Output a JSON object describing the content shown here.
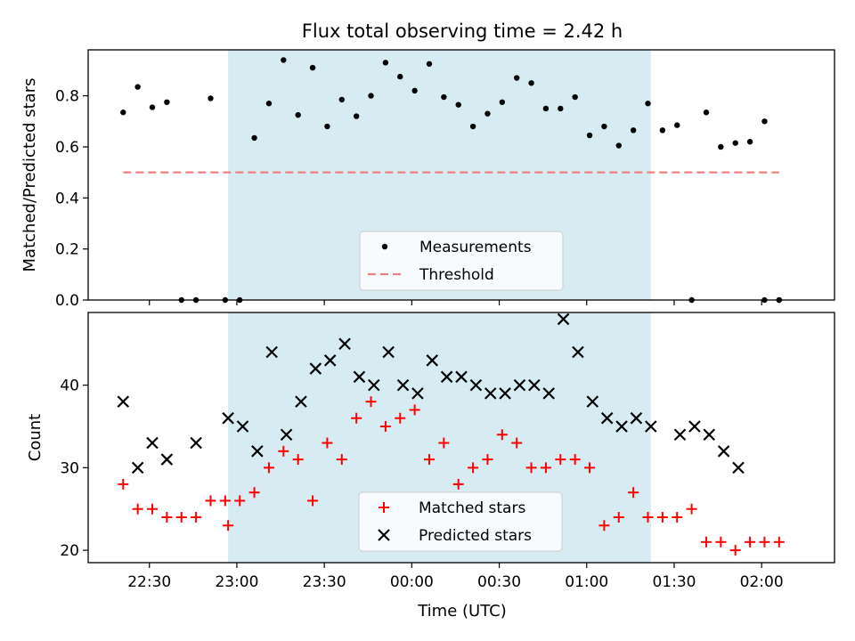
{
  "figure": {
    "title": "Flux total observing time = 2.42 h",
    "xlabel": "Time (UTC)"
  },
  "colors": {
    "band": "#add8e6",
    "threshold": "#f08080",
    "matched": "#ff0000",
    "predicted": "#000000",
    "measurements": "#000000"
  },
  "chart_data": [
    {
      "type": "scatter",
      "ylabel": "Matched/Predicted stars",
      "ylim": [
        0,
        0.98
      ],
      "yticks": [
        0.0,
        0.2,
        0.4,
        0.6,
        0.8
      ],
      "ytick_labels": [
        "0.0",
        "0.2",
        "0.4",
        "0.6",
        "0.8"
      ],
      "xlim": [
        "22:09",
        "02:25"
      ],
      "band": [
        "22:57",
        "01:22"
      ],
      "threshold": {
        "value": 0.5,
        "from": "22:21",
        "to": "02:06"
      },
      "legend": {
        "position": "bottom-center",
        "entries": [
          "Measurements",
          "Threshold"
        ]
      },
      "series": [
        {
          "name": "Measurements",
          "x": [
            "22:21",
            "22:26",
            "22:31",
            "22:36",
            "22:41",
            "22:46",
            "22:51",
            "22:56",
            "23:01",
            "23:06",
            "23:11",
            "23:16",
            "23:21",
            "23:26",
            "23:31",
            "23:36",
            "23:41",
            "23:46",
            "23:51",
            "23:56",
            "00:01",
            "00:06",
            "00:11",
            "00:16",
            "00:21",
            "00:26",
            "00:31",
            "00:36",
            "00:41",
            "00:46",
            "00:51",
            "00:56",
            "01:01",
            "01:06",
            "01:11",
            "01:16",
            "01:21",
            "01:26",
            "01:31",
            "01:36",
            "01:41",
            "01:46",
            "01:51",
            "01:56",
            "02:01",
            "02:06"
          ],
          "y": [
            0.735,
            0.835,
            0.755,
            0.775,
            0.0,
            0.0,
            0.79,
            0.0,
            0.0,
            0.635,
            0.77,
            0.94,
            0.725,
            0.91,
            0.68,
            0.785,
            0.72,
            0.8,
            0.93,
            0.875,
            0.82,
            0.925,
            0.795,
            0.765,
            0.68,
            0.73,
            0.775,
            0.87,
            0.85,
            0.75,
            0.75,
            0.795,
            0.645,
            0.68,
            0.605,
            0.665,
            0.77,
            0.665,
            0.685,
            0.0,
            0.735,
            0.6,
            0.615,
            0.62,
            0.7,
            0.0
          ]
        }
      ],
      "extra_zero_points": [
        "02:01",
        "02:06"
      ]
    },
    {
      "type": "scatter",
      "ylabel": "Count",
      "ylim": [
        18.5,
        48.8
      ],
      "yticks": [
        20,
        30,
        40
      ],
      "ytick_labels": [
        "20",
        "30",
        "40"
      ],
      "xlim": [
        "22:09",
        "02:25"
      ],
      "band": [
        "22:57",
        "01:22"
      ],
      "xticks": [
        "22:30",
        "23:00",
        "23:30",
        "00:00",
        "00:30",
        "01:00",
        "01:30",
        "02:00"
      ],
      "legend": {
        "position": "bottom-center",
        "entries": [
          "Matched stars",
          "Predicted stars"
        ]
      },
      "series": [
        {
          "name": "Matched stars",
          "marker": "+",
          "x": [
            "22:21",
            "22:26",
            "22:31",
            "22:36",
            "22:41",
            "22:46",
            "22:51",
            "22:56",
            "23:01",
            "22:57",
            "23:06",
            "23:11",
            "23:16",
            "23:21",
            "23:26",
            "23:31",
            "23:36",
            "23:41",
            "23:46",
            "23:51",
            "23:56",
            "00:01",
            "00:06",
            "00:11",
            "00:16",
            "00:21",
            "00:26",
            "00:31",
            "00:36",
            "00:41",
            "00:46",
            "00:51",
            "00:56",
            "01:01",
            "01:06",
            "01:11",
            "01:16",
            "01:21",
            "01:26",
            "01:31",
            "01:36",
            "01:41",
            "01:46",
            "01:51",
            "01:56",
            "02:01",
            "02:06"
          ],
          "y": [
            28,
            25,
            25,
            24,
            24,
            24,
            26,
            26,
            26,
            23,
            27,
            30,
            32,
            31,
            26,
            33,
            31,
            36,
            38,
            35,
            36,
            37,
            31,
            33,
            28,
            30,
            31,
            34,
            33,
            30,
            30,
            31,
            31,
            30,
            23,
            24,
            27,
            24,
            24,
            24,
            25,
            21,
            21,
            20,
            21,
            21,
            21
          ]
        },
        {
          "name": "Predicted stars",
          "marker": "x",
          "x": [
            "22:21",
            "22:26",
            "22:31",
            "22:36",
            "22:46",
            "22:57",
            "23:02",
            "23:07",
            "23:12",
            "23:17",
            "23:22",
            "23:27",
            "23:32",
            "23:37",
            "23:42",
            "23:47",
            "23:52",
            "23:57",
            "00:02",
            "00:07",
            "00:12",
            "00:17",
            "00:22",
            "00:27",
            "00:32",
            "00:37",
            "00:42",
            "00:47",
            "00:52",
            "00:57",
            "01:02",
            "01:07",
            "01:12",
            "01:17",
            "01:22",
            "01:32",
            "01:37",
            "01:42",
            "01:47",
            "01:52"
          ],
          "y": [
            38,
            30,
            33,
            31,
            33,
            36,
            35,
            32,
            44,
            34,
            38,
            42,
            43,
            45,
            41,
            40,
            44,
            40,
            39,
            43,
            41,
            41,
            40,
            39,
            39,
            40,
            40,
            39,
            48,
            44,
            38,
            36,
            35,
            36,
            35,
            34,
            35,
            34,
            32,
            30
          ]
        }
      ]
    }
  ]
}
